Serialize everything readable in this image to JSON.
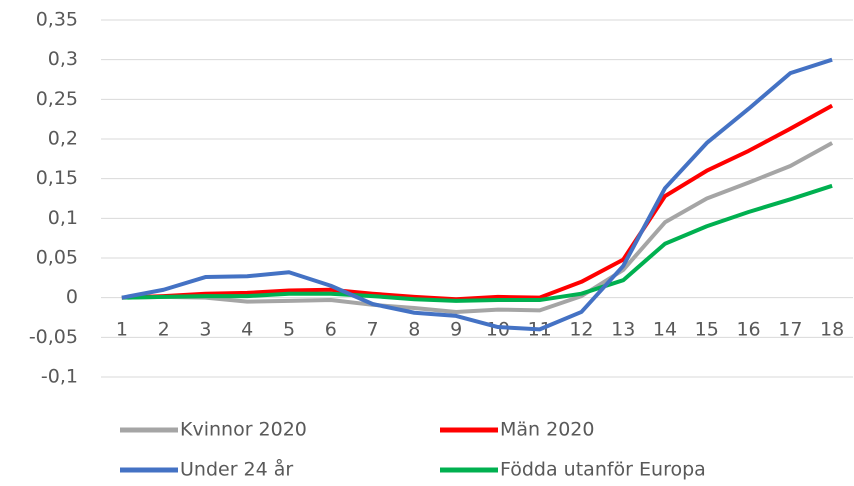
{
  "chart_data": {
    "type": "line",
    "categories": [
      "1",
      "2",
      "3",
      "4",
      "5",
      "6",
      "7",
      "8",
      "9",
      "10",
      "11",
      "12",
      "13",
      "14",
      "15",
      "16",
      "17",
      "18"
    ],
    "series": [
      {
        "name": "Kvinnor 2020",
        "color": "#a5a5a5",
        "values": [
          0,
          0.001,
          0,
          -0.005,
          -0.004,
          -0.003,
          -0.009,
          -0.013,
          -0.018,
          -0.015,
          -0.016,
          0.002,
          0.035,
          0.095,
          0.125,
          0.145,
          0.166,
          0.195
        ]
      },
      {
        "name": "Män 2020",
        "color": "#ff0000",
        "values": [
          0,
          0.002,
          0.005,
          0.006,
          0.009,
          0.01,
          0.005,
          0.001,
          -0.002,
          0.001,
          0,
          0.02,
          0.048,
          0.128,
          0.16,
          0.185,
          0.213,
          0.242
        ]
      },
      {
        "name": "Under 24 år",
        "color": "#4472c4",
        "values": [
          0,
          0.01,
          0.026,
          0.027,
          0.032,
          0.015,
          -0.008,
          -0.019,
          -0.023,
          -0.037,
          -0.04,
          -0.018,
          0.04,
          0.138,
          0.195,
          0.238,
          0.283,
          0.3
        ]
      },
      {
        "name": "Födda utanför Europa",
        "color": "#00b050",
        "values": [
          0,
          0.001,
          0.002,
          0.002,
          0.005,
          0.005,
          0.002,
          -0.002,
          -0.004,
          -0.003,
          -0.003,
          0.005,
          0.022,
          0.068,
          0.09,
          0.108,
          0.124,
          0.141
        ]
      }
    ],
    "ylim": [
      -0.1,
      0.35
    ],
    "yticks": [
      {
        "value": -0.1,
        "label": "-0,1"
      },
      {
        "value": -0.05,
        "label": "-0,05"
      },
      0,
      {
        "value": 0.05,
        "label": "0,05"
      },
      {
        "value": 0.1,
        "label": "0,1"
      },
      {
        "value": 0.15,
        "label": "0,15"
      },
      {
        "value": 0.2,
        "label": "0,2"
      },
      {
        "value": 0.25,
        "label": "0,25"
      },
      {
        "value": 0.3,
        "label": "0,3"
      },
      {
        "value": 0.35,
        "label": "0,35"
      }
    ],
    "grid": true
  }
}
